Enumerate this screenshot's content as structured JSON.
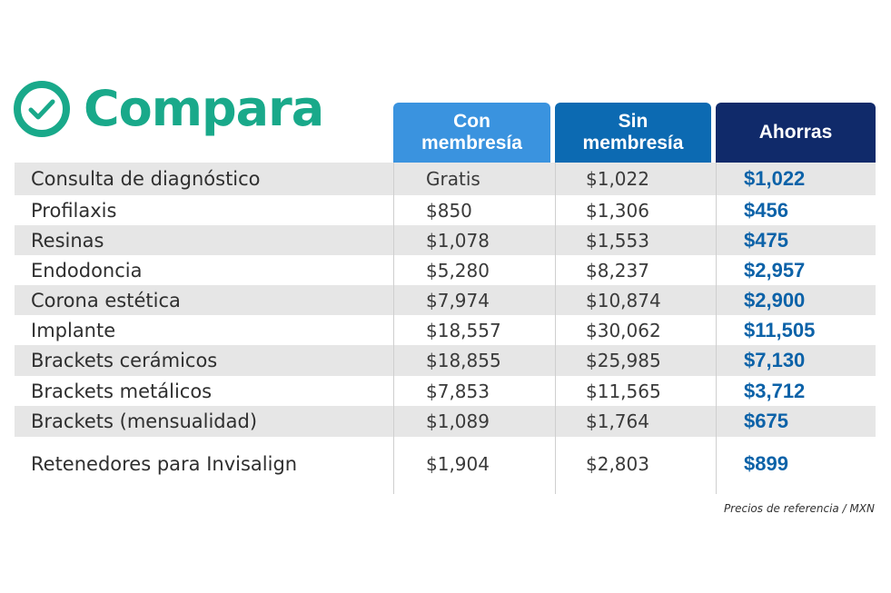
{
  "title": "Compara",
  "brand_color": "#19a98a",
  "icon": "check-circle-icon",
  "headers": {
    "con": "Con\nmembresía",
    "sin": "Sin\nmembresía",
    "ahorras": "Ahorras"
  },
  "header_colors": {
    "con": "#3a93df",
    "sin": "#0c6ab2",
    "ahorras": "#102a6a"
  },
  "savings_color": "#0c62a8",
  "rows": [
    {
      "name": "Consulta de diagnóstico",
      "con": "Gratis",
      "sin": "$1,022",
      "ahorras": "$1,022"
    },
    {
      "name": "Profilaxis",
      "con": "$850",
      "sin": "$1,306",
      "ahorras": "$456"
    },
    {
      "name": "Resinas",
      "con": "$1,078",
      "sin": "$1,553",
      "ahorras": "$475"
    },
    {
      "name": "Endodoncia",
      "con": "$5,280",
      "sin": "$8,237",
      "ahorras": "$2,957"
    },
    {
      "name": "Corona estética",
      "con": "$7,974",
      "sin": "$10,874",
      "ahorras": "$2,900"
    },
    {
      "name": "Implante",
      "con": "$18,557",
      "sin": "$30,062",
      "ahorras": "$11,505"
    },
    {
      "name": "Brackets cerámicos",
      "con": "$18,855",
      "sin": "$25,985",
      "ahorras": "$7,130"
    },
    {
      "name": "Brackets metálicos",
      "con": "$7,853",
      "sin": "$11,565",
      "ahorras": "$3,712"
    },
    {
      "name": "Brackets (mensualidad)",
      "con": "$1,089",
      "sin": "$1,764",
      "ahorras": "$675"
    },
    {
      "name": "Retenedores para Invisalign",
      "con": "$1,904",
      "sin": "$2,803",
      "ahorras": "$899"
    }
  ],
  "footnote": "Precios de referencia / MXN"
}
